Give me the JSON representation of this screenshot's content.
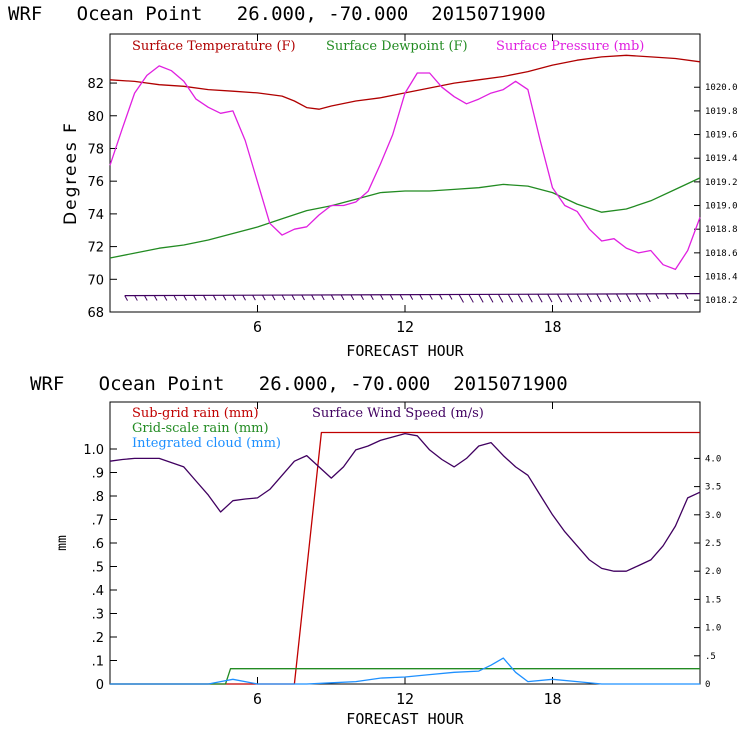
{
  "colors": {
    "temperature": "#b00000",
    "dewpoint": "#228b22",
    "pressure": "#e020e0",
    "subgrid_rain": "#c00000",
    "grid_rain": "#228b22",
    "cloud": "#1e90ff",
    "wind": "#400060"
  },
  "chart_data": [
    {
      "type": "line",
      "title": "WRF   Ocean Point   26.000, -70.000  2015071900",
      "xlabel": "FORECAST HOUR",
      "ylabel": "Degrees F",
      "xlim": [
        0,
        24
      ],
      "ylim": [
        68,
        85
      ],
      "y2lim": [
        1018.1,
        1020.45
      ],
      "x_ticks": [
        6,
        12,
        18
      ],
      "x_tick_labels": [
        "6",
        "12",
        "18"
      ],
      "y_ticks": [
        68,
        70,
        72,
        74,
        76,
        78,
        80,
        82
      ],
      "y_tick_labels": [
        "68",
        "70",
        "72",
        "74",
        "76",
        "78",
        "80",
        "82"
      ],
      "y2_ticks": [
        1018.2,
        1018.4,
        1018.6,
        1018.8,
        1019.0,
        1019.2,
        1019.4,
        1019.6,
        1019.8,
        1020.0
      ],
      "y2_tick_labels": [
        "1018.2",
        "1018.4",
        "1018.6",
        "1018.8",
        "1019.0",
        "1019.2",
        "1019.4",
        "1019.6",
        "1019.8",
        "1020.0"
      ],
      "series": [
        {
          "name": "Surface Temperature (F)",
          "axis": "left",
          "x": [
            0,
            1,
            2,
            3,
            4,
            5,
            6,
            7,
            7.5,
            8,
            8.5,
            9,
            10,
            11,
            12,
            13,
            14,
            15,
            16,
            17,
            18,
            19,
            20,
            21,
            22,
            23,
            24
          ],
          "y": [
            82.2,
            82.1,
            81.9,
            81.8,
            81.6,
            81.5,
            81.4,
            81.2,
            80.9,
            80.5,
            80.4,
            80.6,
            80.9,
            81.1,
            81.4,
            81.7,
            82.0,
            82.2,
            82.4,
            82.7,
            83.1,
            83.4,
            83.6,
            83.7,
            83.6,
            83.5,
            83.3
          ]
        },
        {
          "name": "Surface Dewpoint (F)",
          "axis": "left",
          "x": [
            0,
            1,
            2,
            3,
            4,
            5,
            6,
            7,
            8,
            9,
            10,
            11,
            12,
            13,
            14,
            15,
            16,
            17,
            18,
            19,
            20,
            21,
            22,
            23,
            24
          ],
          "y": [
            71.3,
            71.6,
            71.9,
            72.1,
            72.4,
            72.8,
            73.2,
            73.7,
            74.2,
            74.5,
            74.9,
            75.3,
            75.4,
            75.4,
            75.5,
            75.6,
            75.8,
            75.7,
            75.3,
            74.6,
            74.1,
            74.3,
            74.8,
            75.5,
            76.2
          ]
        },
        {
          "name": "Surface Pressure (mb)",
          "axis": "right",
          "x": [
            0,
            0.5,
            1,
            1.5,
            2,
            2.5,
            3,
            3.5,
            4,
            4.5,
            5,
            5.5,
            6,
            6.5,
            7,
            7.5,
            8,
            8.5,
            9,
            9.5,
            10,
            10.5,
            11,
            11.5,
            12,
            12.5,
            13,
            13.5,
            14,
            14.5,
            15,
            15.5,
            16,
            16.5,
            17,
            17.5,
            18,
            18.5,
            19,
            19.5,
            20,
            20.5,
            21,
            21.5,
            22,
            22.5,
            23,
            23.5,
            24
          ],
          "y": [
            1019.34,
            1019.65,
            1019.95,
            1020.1,
            1020.18,
            1020.14,
            1020.05,
            1019.9,
            1019.83,
            1019.78,
            1019.8,
            1019.55,
            1019.2,
            1018.85,
            1018.75,
            1018.8,
            1018.82,
            1018.92,
            1019.0,
            1019.0,
            1019.03,
            1019.12,
            1019.35,
            1019.6,
            1019.95,
            1020.12,
            1020.12,
            1020.0,
            1019.92,
            1019.86,
            1019.9,
            1019.95,
            1019.98,
            1020.05,
            1019.98,
            1019.55,
            1019.15,
            1019.0,
            1018.95,
            1018.8,
            1018.7,
            1018.72,
            1018.64,
            1018.6,
            1018.62,
            1018.5,
            1018.46,
            1018.62,
            1018.9
          ]
        }
      ],
      "wind_barbs_y": 69.0
    },
    {
      "type": "line",
      "title": "WRF   Ocean Point   26.000, -70.000  2015071900",
      "xlabel": "FORECAST HOUR",
      "ylabel": "mm",
      "xlim": [
        0,
        24
      ],
      "ylim": [
        0,
        1.2
      ],
      "y2lim": [
        0,
        5.0
      ],
      "x_ticks": [
        6,
        12,
        18
      ],
      "x_tick_labels": [
        "6",
        "12",
        "18"
      ],
      "y_ticks": [
        0,
        0.1,
        0.2,
        0.3,
        0.4,
        0.5,
        0.6,
        0.7,
        0.8,
        0.9,
        1.0
      ],
      "y_tick_labels": [
        "0",
        ".1",
        ".2",
        ".3",
        ".4",
        ".5",
        ".6",
        ".7",
        ".8",
        ".9",
        "1.0"
      ],
      "y2_ticks": [
        0,
        0.5,
        1.0,
        1.5,
        2.0,
        2.5,
        3.0,
        3.5,
        4.0
      ],
      "y2_tick_labels": [
        "0",
        ".5",
        "1.0",
        "1.5",
        "2.0",
        "2.5",
        "3.0",
        "3.5",
        "4.0"
      ],
      "series": [
        {
          "name": "Sub-grid rain (mm)",
          "axis": "left",
          "x": [
            0,
            7.5,
            8.6,
            24
          ],
          "y": [
            0,
            0,
            1.07,
            1.07
          ]
        },
        {
          "name": "Grid-scale rain (mm)",
          "axis": "left",
          "x": [
            0,
            4.7,
            4.9,
            24
          ],
          "y": [
            0,
            0,
            0.065,
            0.065
          ]
        },
        {
          "name": "Integrated cloud (mm)",
          "axis": "left",
          "x": [
            0,
            4,
            4.5,
            5,
            6,
            7,
            8,
            9,
            10,
            11,
            12,
            13,
            14,
            15,
            15.5,
            16,
            16.5,
            17,
            18,
            19,
            20,
            21,
            22,
            23,
            24
          ],
          "y": [
            0,
            0,
            0.01,
            0.02,
            0,
            0,
            0,
            0.005,
            0.01,
            0.025,
            0.03,
            0.04,
            0.05,
            0.055,
            0.08,
            0.11,
            0.05,
            0.01,
            0.02,
            0.01,
            0,
            0,
            0,
            0,
            0
          ]
        },
        {
          "name": "Surface Wind Speed (m/s)",
          "axis": "right",
          "x": [
            0,
            0.5,
            1,
            2,
            3,
            3.5,
            4,
            4.5,
            5,
            5.5,
            6,
            6.5,
            7,
            7.5,
            8,
            8.5,
            9,
            9.5,
            10,
            10.5,
            11,
            11.5,
            12,
            12.5,
            13,
            13.5,
            14,
            14.5,
            15,
            15.5,
            16,
            16.5,
            17,
            17.5,
            18,
            18.5,
            19,
            19.5,
            20,
            20.5,
            21,
            21.5,
            22,
            22.5,
            23,
            23.5,
            24
          ],
          "y": [
            3.95,
            3.98,
            4.0,
            4.0,
            3.85,
            3.6,
            3.35,
            3.05,
            3.25,
            3.28,
            3.3,
            3.45,
            3.7,
            3.95,
            4.05,
            3.85,
            3.65,
            3.85,
            4.15,
            4.22,
            4.32,
            4.38,
            4.44,
            4.4,
            4.15,
            3.98,
            3.85,
            4.0,
            4.22,
            4.28,
            4.05,
            3.85,
            3.7,
            3.35,
            3.0,
            2.7,
            2.45,
            2.2,
            2.05,
            2.0,
            2.0,
            2.1,
            2.2,
            2.45,
            2.8,
            3.3,
            3.4
          ]
        }
      ]
    }
  ]
}
